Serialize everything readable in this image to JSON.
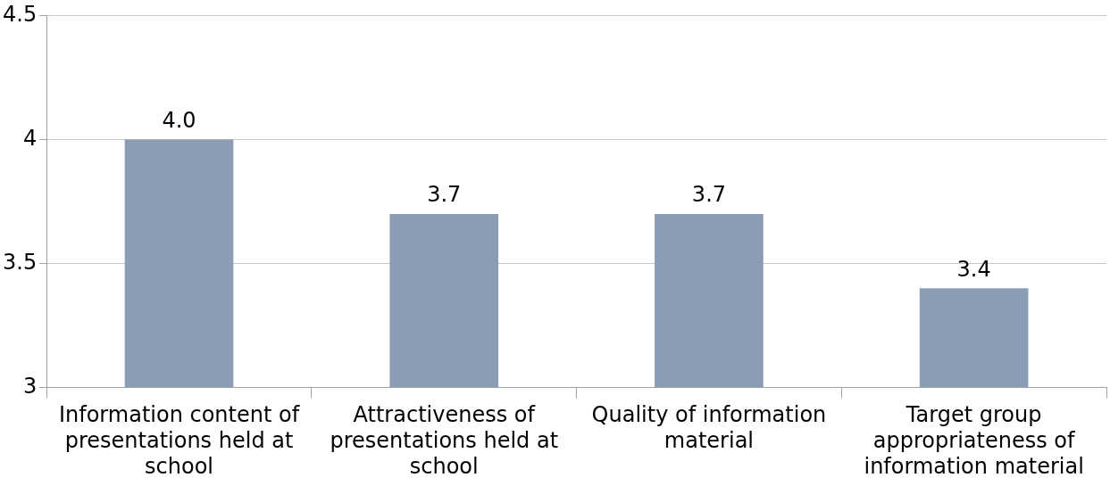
{
  "chart_data": {
    "type": "bar",
    "categories": [
      "Information content of presentations held at school",
      "Attractiveness of presentations held at school",
      "Quality of information material",
      "Target group appropriateness of information material"
    ],
    "values": [
      4.0,
      3.7,
      3.7,
      3.4
    ],
    "color": "#8b9db5",
    "value_labels": [
      "4.0",
      "3.7",
      "3.7",
      "3.4"
    ],
    "ylim": [
      3,
      4.5
    ],
    "yticks": [
      3,
      3.5,
      4,
      4.5
    ],
    "grid": "y",
    "legend": false
  }
}
